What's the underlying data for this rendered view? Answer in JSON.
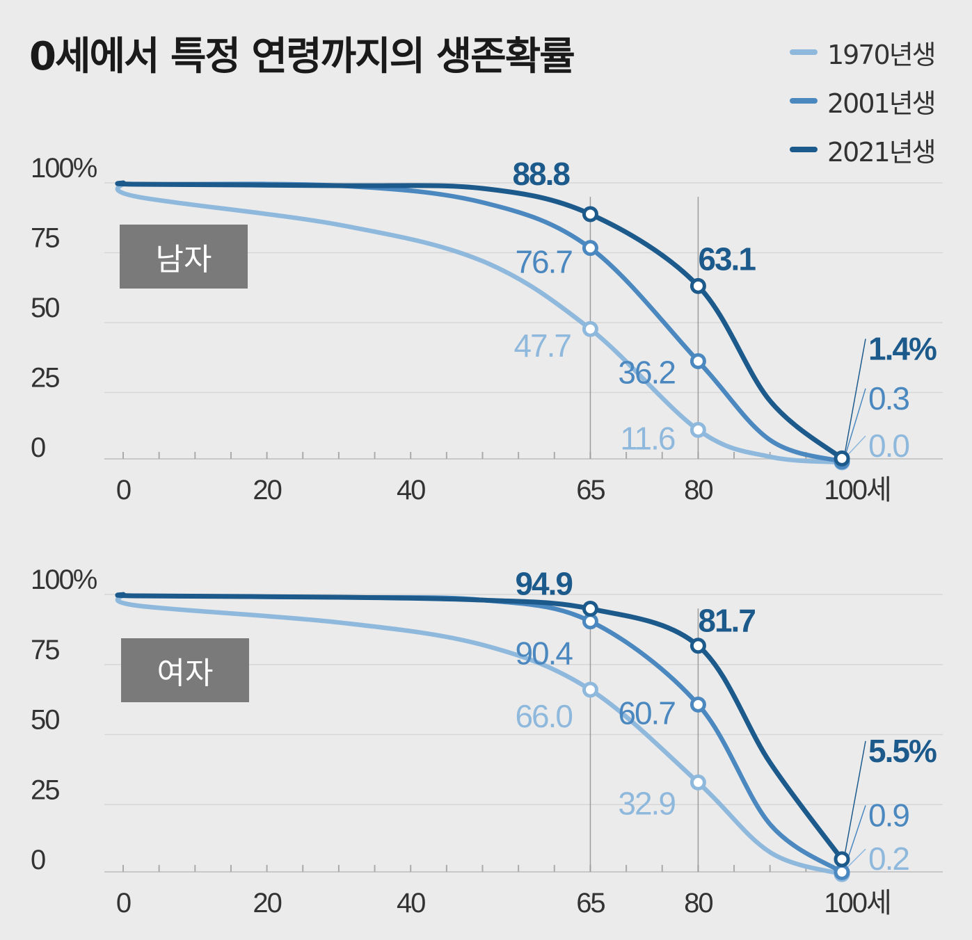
{
  "title": "0세에서 특정 연령까지의 생존확률",
  "colors": {
    "s1970": "#8fb8dd",
    "s2001": "#4a88bf",
    "s2021": "#1d5a8c"
  },
  "legend": [
    {
      "label": "1970년생",
      "color": "#8fb8dd"
    },
    {
      "label": "2001년생",
      "color": "#4a88bf"
    },
    {
      "label": "2021년생",
      "color": "#1d5a8c"
    }
  ],
  "chart_data": [
    {
      "type": "line",
      "panel_label": "남자",
      "ylim": [
        0,
        100
      ],
      "y_ticks": [
        "100%",
        "75",
        "50",
        "25",
        "0"
      ],
      "x_ticks": [
        "0",
        "20",
        "40",
        "65",
        "80",
        "100세"
      ],
      "series": [
        {
          "name": "1970년생",
          "x": [
            0,
            65,
            80,
            100
          ],
          "values": [
            100,
            47.7,
            11.6,
            0.0
          ],
          "labels": [
            "",
            "47.7",
            "11.6",
            "0.0"
          ]
        },
        {
          "name": "2001년생",
          "x": [
            0,
            65,
            80,
            100
          ],
          "values": [
            100,
            76.7,
            36.2,
            0.3
          ],
          "labels": [
            "",
            "76.7",
            "36.2",
            "0.3"
          ]
        },
        {
          "name": "2021년생",
          "x": [
            0,
            65,
            80,
            100
          ],
          "values": [
            100,
            88.8,
            63.1,
            1.4
          ],
          "labels": [
            "",
            "88.8",
            "63.1",
            "1.4%"
          ]
        }
      ]
    },
    {
      "type": "line",
      "panel_label": "여자",
      "ylim": [
        0,
        100
      ],
      "y_ticks": [
        "100%",
        "75",
        "50",
        "25",
        "0"
      ],
      "x_ticks": [
        "0",
        "20",
        "40",
        "65",
        "80",
        "100세"
      ],
      "series": [
        {
          "name": "1970년생",
          "x": [
            0,
            65,
            80,
            100
          ],
          "values": [
            100,
            66.0,
            32.9,
            0.2
          ],
          "labels": [
            "",
            "66.0",
            "32.9",
            "0.2"
          ]
        },
        {
          "name": "2001년생",
          "x": [
            0,
            65,
            80,
            100
          ],
          "values": [
            100,
            90.4,
            60.7,
            0.9
          ],
          "labels": [
            "",
            "90.4",
            "60.7",
            "0.9"
          ]
        },
        {
          "name": "2021년생",
          "x": [
            0,
            65,
            80,
            100
          ],
          "values": [
            100,
            94.9,
            81.7,
            5.5
          ],
          "labels": [
            "",
            "94.9",
            "81.7",
            "5.5%"
          ]
        }
      ]
    }
  ]
}
